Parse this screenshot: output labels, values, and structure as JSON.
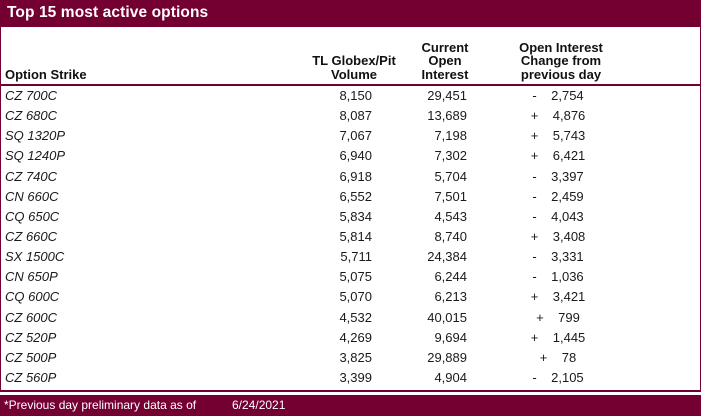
{
  "title": "Top 15 most active options",
  "colors": {
    "maroon": "#740032",
    "strike_text": "#4a1f30"
  },
  "table": {
    "columns": {
      "strike_header": "Option Strike",
      "volume_header_lines": [
        "TL Globex/Pit",
        "Volume"
      ],
      "open_interest_header_lines": [
        "Current",
        "Open",
        "Interest"
      ],
      "change_header_lines": [
        "Open Interest",
        "Change from",
        "previous day"
      ]
    },
    "rows": [
      {
        "strike": "CZ 700C",
        "volume": "8,150",
        "open_interest": "29,451",
        "change_sign": "-",
        "change_value": "2,754"
      },
      {
        "strike": "CZ 680C",
        "volume": "8,087",
        "open_interest": "13,689",
        "change_sign": "+",
        "change_value": "4,876"
      },
      {
        "strike": "SQ 1320P",
        "volume": "7,067",
        "open_interest": "7,198",
        "change_sign": "+",
        "change_value": "5,743"
      },
      {
        "strike": "SQ 1240P",
        "volume": "6,940",
        "open_interest": "7,302",
        "change_sign": "+",
        "change_value": "6,421"
      },
      {
        "strike": "CZ 740C",
        "volume": "6,918",
        "open_interest": "5,704",
        "change_sign": "-",
        "change_value": "3,397"
      },
      {
        "strike": "CN 660C",
        "volume": "6,552",
        "open_interest": "7,501",
        "change_sign": "-",
        "change_value": "2,459"
      },
      {
        "strike": "CQ 650C",
        "volume": "5,834",
        "open_interest": "4,543",
        "change_sign": "-",
        "change_value": "4,043"
      },
      {
        "strike": "CZ 660C",
        "volume": "5,814",
        "open_interest": "8,740",
        "change_sign": "+",
        "change_value": "3,408"
      },
      {
        "strike": "SX 1500C",
        "volume": "5,711",
        "open_interest": "24,384",
        "change_sign": "-",
        "change_value": "3,331"
      },
      {
        "strike": "CN 650P",
        "volume": "5,075",
        "open_interest": "6,244",
        "change_sign": "-",
        "change_value": "1,036"
      },
      {
        "strike": "CQ 600C",
        "volume": "5,070",
        "open_interest": "6,213",
        "change_sign": "+",
        "change_value": "3,421"
      },
      {
        "strike": "CZ 600C",
        "volume": "4,532",
        "open_interest": "40,015",
        "change_sign": "+",
        "change_value": "799"
      },
      {
        "strike": "CZ 520P",
        "volume": "4,269",
        "open_interest": "9,694",
        "change_sign": "+",
        "change_value": "1,445"
      },
      {
        "strike": "CZ 500P",
        "volume": "3,825",
        "open_interest": "29,889",
        "change_sign": "+",
        "change_value": "78"
      },
      {
        "strike": "CZ 560P",
        "volume": "3,399",
        "open_interest": "4,904",
        "change_sign": "-",
        "change_value": "2,105"
      }
    ]
  },
  "footer": {
    "note": "*Previous day preliminary data as of",
    "date": "6/24/2021"
  }
}
